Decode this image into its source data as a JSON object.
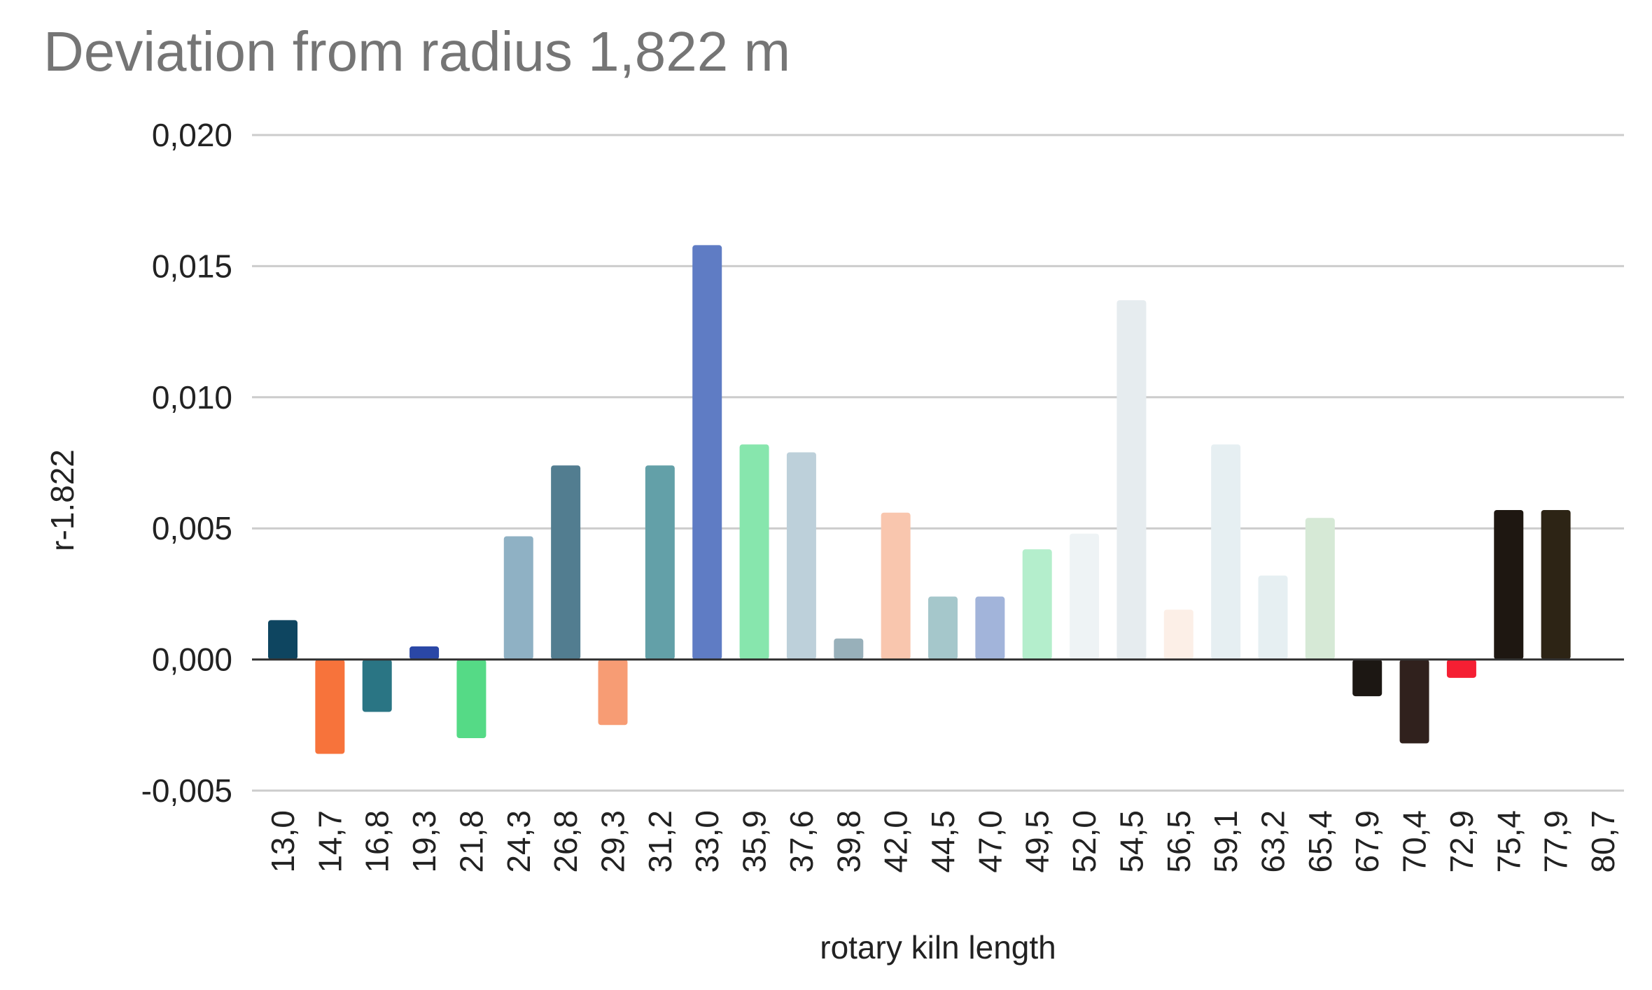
{
  "chart_data": {
    "type": "bar",
    "title": "Deviation from radius 1,822 m",
    "xlabel": "rotary kiln length",
    "ylabel": "r-1.822",
    "ylim": [
      -0.005,
      0.02
    ],
    "yticks": [
      "0,020",
      "0,015",
      "0,010",
      "0,005",
      "0,000",
      "-0,005"
    ],
    "ytick_values": [
      0.02,
      0.015,
      0.01,
      0.005,
      0.0,
      -0.005
    ],
    "grid": true,
    "legend": "none",
    "categories": [
      "13,0",
      "14,7",
      "16,8",
      "19,3",
      "21,8",
      "24,3",
      "26,8",
      "29,3",
      "31,2",
      "33,0",
      "35,9",
      "37,6",
      "39,8",
      "42,0",
      "44,5",
      "47,0",
      "49,5",
      "52,0",
      "54,5",
      "56,5",
      "59,1",
      "63,2",
      "65,4",
      "67,9",
      "70,4",
      "72,9",
      "75,4",
      "77,9",
      "80,7"
    ],
    "values": [
      0.0015,
      -0.0036,
      -0.002,
      0.0005,
      -0.003,
      0.0047,
      0.0074,
      -0.0025,
      0.0074,
      0.0158,
      0.0082,
      0.0079,
      0.0008,
      0.0056,
      0.0024,
      0.0024,
      0.0042,
      0.0048,
      0.0137,
      0.0019,
      0.0082,
      0.0032,
      0.0054,
      -0.0014,
      -0.0032,
      -0.0007,
      0.0057,
      0.0057,
      0.0
    ],
    "colors": [
      "#0e4560",
      "#f7733b",
      "#2a7584",
      "#2a47a6",
      "#55da86",
      "#8fb1c4",
      "#527d90",
      "#f79c74",
      "#63a0a8",
      "#5f7cc4",
      "#87e6ad",
      "#bdd0da",
      "#98b0ba",
      "#f9c6ae",
      "#a5c7cb",
      "#a2b4da",
      "#b4eecc",
      "#eef3f5",
      "#e6ecef",
      "#fcefe7",
      "#e6eff2",
      "#e6eff2",
      "#d6e9d6",
      "#1c1713",
      "#30211d",
      "#f51f33",
      "#1e1711",
      "#2d2415",
      "#ffffff"
    ]
  }
}
